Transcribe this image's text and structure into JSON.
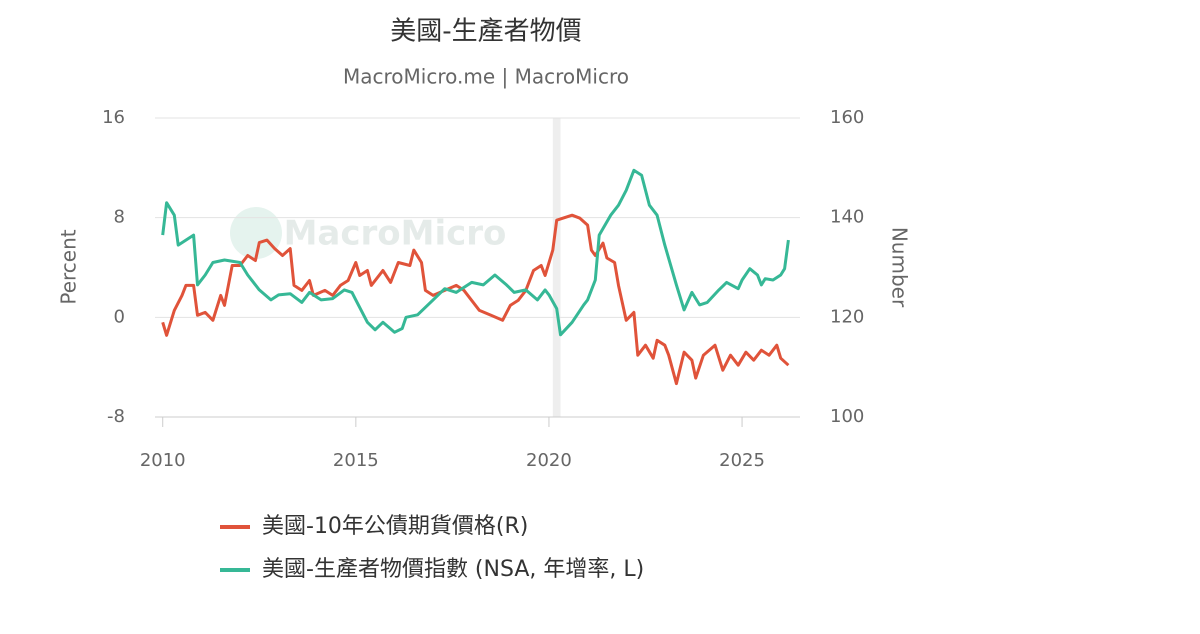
{
  "chart_data": {
    "type": "line",
    "title": "美國-生產者物價",
    "subtitle": "MacroMicro.me | MacroMicro",
    "watermark": "MacroMicro",
    "ylabel": "Percent",
    "y2label": "Number",
    "xlim": [
      2009.8,
      2026.5
    ],
    "xticks": [
      2010,
      2015,
      2020,
      2025
    ],
    "ylim": [
      -8,
      16
    ],
    "yticks": [
      -8,
      0,
      8,
      16
    ],
    "y2lim": [
      100,
      160
    ],
    "y2ticks": [
      100,
      120,
      140,
      160
    ],
    "grid": true,
    "shaded_x": [
      2020.1,
      2020.3
    ],
    "series": [
      {
        "name": "美國-10年公債期貨價格(R)",
        "color": "#e0533a",
        "axis": "y2",
        "x": [
          2010.0,
          2010.1,
          2010.3,
          2010.5,
          2010.6,
          2010.8,
          2010.9,
          2011.1,
          2011.3,
          2011.5,
          2011.6,
          2011.8,
          2012.0,
          2012.2,
          2012.4,
          2012.5,
          2012.7,
          2012.9,
          2013.1,
          2013.3,
          2013.4,
          2013.6,
          2013.8,
          2013.9,
          2014.2,
          2014.4,
          2014.6,
          2014.8,
          2015.0,
          2015.1,
          2015.3,
          2015.4,
          2015.7,
          2015.9,
          2016.1,
          2016.4,
          2016.5,
          2016.7,
          2016.8,
          2017.0,
          2017.3,
          2017.6,
          2017.8,
          2018.0,
          2018.2,
          2018.5,
          2018.8,
          2019.0,
          2019.2,
          2019.4,
          2019.6,
          2019.8,
          2019.9,
          2020.1,
          2020.2,
          2020.4,
          2020.6,
          2020.8,
          2021.0,
          2021.1,
          2021.2,
          2021.4,
          2021.5,
          2021.7,
          2021.8,
          2022.0,
          2022.2,
          2022.3,
          2022.5,
          2022.7,
          2022.8,
          2023.0,
          2023.1,
          2023.3,
          2023.5,
          2023.7,
          2023.8,
          2024.0,
          2024.3,
          2024.5,
          2024.7,
          2024.9,
          2025.1,
          2025.3,
          2025.5,
          2025.7,
          2025.9,
          2026.0,
          2026.2
        ],
        "values": [
          119,
          116.4,
          121.4,
          124.4,
          126.4,
          126.4,
          120.4,
          121,
          119.4,
          124.4,
          122.4,
          130.4,
          130.4,
          132.4,
          131.4,
          135,
          135.5,
          133.8,
          132.4,
          133.8,
          126.4,
          125.4,
          127.4,
          124.4,
          125.4,
          124.4,
          126.4,
          127.4,
          131,
          128.4,
          129.4,
          126.4,
          129.4,
          127,
          131,
          130.4,
          133.5,
          131,
          125.4,
          124.4,
          125.4,
          126.4,
          125.4,
          123.4,
          121.4,
          120.4,
          119.4,
          122.4,
          123.4,
          125.4,
          129.4,
          130.4,
          128.4,
          133.5,
          139.5,
          140,
          140.5,
          139.9,
          138.5,
          133.5,
          132.4,
          134.9,
          131.9,
          131,
          126.4,
          119.4,
          121,
          112.4,
          114.4,
          111.8,
          115.4,
          114.4,
          112.4,
          106.7,
          113,
          111.4,
          107.8,
          112.4,
          114.4,
          109.4,
          112.4,
          110.4,
          113,
          111.4,
          113.4,
          112.4,
          114.4,
          111.8,
          110.4
        ]
      },
      {
        "name": "美國-生產者物價指數 (NSA, 年增率, L)",
        "color": "#36b896",
        "x": [
          2010.0,
          2010.1,
          2010.3,
          2010.4,
          2010.6,
          2010.8,
          2010.9,
          2011.1,
          2011.3,
          2011.6,
          2012.0,
          2012.2,
          2012.5,
          2012.8,
          2013.0,
          2013.3,
          2013.6,
          2013.8,
          2014.1,
          2014.4,
          2014.7,
          2014.9,
          2015.0,
          2015.3,
          2015.5,
          2015.7,
          2016.0,
          2016.2,
          2016.3,
          2016.6,
          2017.0,
          2017.3,
          2017.6,
          2018.0,
          2018.3,
          2018.6,
          2018.9,
          2019.1,
          2019.4,
          2019.7,
          2019.9,
          2020.0,
          2020.2,
          2020.3,
          2020.6,
          2020.9,
          2021.0,
          2021.2,
          2021.3,
          2021.6,
          2021.8,
          2022.0,
          2022.2,
          2022.4,
          2022.6,
          2022.8,
          2023.0,
          2023.3,
          2023.5,
          2023.7,
          2023.9,
          2024.1,
          2024.4,
          2024.6,
          2024.9,
          2025.0,
          2025.2,
          2025.4,
          2025.5,
          2025.6,
          2025.8,
          2026.0,
          2026.1,
          2026.2
        ],
        "values": [
          6.6,
          9.2,
          8.2,
          5.8,
          6.2,
          6.6,
          2.6,
          3.4,
          4.4,
          4.6,
          4.4,
          3.4,
          2.2,
          1.4,
          1.8,
          1.9,
          1.2,
          2.0,
          1.4,
          1.5,
          2.2,
          2.0,
          1.4,
          -0.4,
          -1,
          -0.4,
          -1.2,
          -0.9,
          0,
          0.2,
          1.4,
          2.3,
          2.0,
          2.8,
          2.6,
          3.4,
          2.6,
          2.0,
          2.2,
          1.4,
          2.2,
          1.8,
          0.7,
          -1.4,
          -0.4,
          1,
          1.4,
          3,
          6.6,
          8.2,
          9,
          10.2,
          11.8,
          11.4,
          9,
          8.2,
          5.8,
          2.6,
          0.6,
          2.0,
          1.0,
          1.2,
          2.2,
          2.8,
          2.3,
          3.0,
          3.9,
          3.4,
          2.6,
          3.1,
          3.0,
          3.4,
          3.9,
          6.2
        ]
      }
    ]
  }
}
